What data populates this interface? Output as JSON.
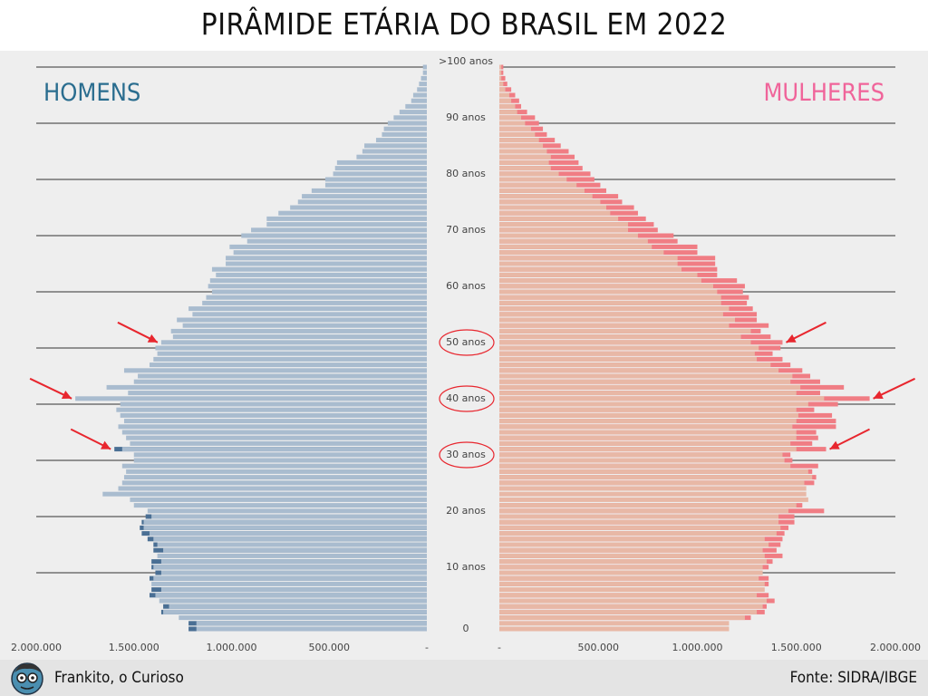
{
  "title": "PIRÂMIDE ETÁRIA DO BRASIL EM 2022",
  "footer": {
    "credit": "Frankito, o Curioso",
    "source": "Fonte: SIDRA/IBGE"
  },
  "colors": {
    "male_bar": "#a9bccf",
    "male_excess": "#4a6f94",
    "female_bar": "#e8b8a6",
    "female_excess": "#f07d84",
    "male_label": "#2a6d8f",
    "female_label": "#f0649a",
    "arrow": "#e8262e",
    "panel": "#eeeeee"
  },
  "chart_data": {
    "type": "bar",
    "orientation": "horizontal-population-pyramid",
    "title": "PIRÂMIDE ETÁRIA DO BRASIL EM 2022",
    "left_label": "HOMENS",
    "right_label": "MULHERES",
    "x_range": [
      0,
      2000000
    ],
    "male_ticks": [
      "2.000.000",
      "1.500.000",
      "1.000.000",
      "500.000",
      "-"
    ],
    "female_ticks": [
      "-",
      "500.000",
      "1.000.000",
      "1.500.000",
      "2.000.000"
    ],
    "age_labels": [
      {
        "age": 100,
        "label": ">100 anos"
      },
      {
        "age": 90,
        "label": "90 anos"
      },
      {
        "age": 80,
        "label": "80 anos"
      },
      {
        "age": 70,
        "label": "70 anos"
      },
      {
        "age": 60,
        "label": "60 anos"
      },
      {
        "age": 50,
        "label": "50 anos"
      },
      {
        "age": 40,
        "label": "40 anos"
      },
      {
        "age": 30,
        "label": "30 anos"
      },
      {
        "age": 20,
        "label": "20 anos"
      },
      {
        "age": 10,
        "label": "10 anos"
      },
      {
        "age": 0,
        "label": "0"
      }
    ],
    "highlighted_ages": [
      50,
      40,
      30
    ],
    "arrow_ages": [
      51,
      41,
      32
    ],
    "ages": [
      0,
      1,
      2,
      3,
      4,
      5,
      6,
      7,
      8,
      9,
      10,
      11,
      12,
      13,
      14,
      15,
      16,
      17,
      18,
      19,
      20,
      21,
      22,
      23,
      24,
      25,
      26,
      27,
      28,
      29,
      30,
      31,
      32,
      33,
      34,
      35,
      36,
      37,
      38,
      39,
      40,
      41,
      42,
      43,
      44,
      45,
      46,
      47,
      48,
      49,
      50,
      51,
      52,
      53,
      54,
      55,
      56,
      57,
      58,
      59,
      60,
      61,
      62,
      63,
      64,
      65,
      66,
      67,
      68,
      69,
      70,
      71,
      72,
      73,
      74,
      75,
      76,
      77,
      78,
      79,
      80,
      81,
      82,
      83,
      84,
      85,
      86,
      87,
      88,
      89,
      90,
      91,
      92,
      93,
      94,
      95,
      96,
      97,
      98,
      99,
      100
    ],
    "series": [
      {
        "name": "HOMENS",
        "values": [
          1180000,
          1180000,
          1270000,
          1350000,
          1320000,
          1370000,
          1390000,
          1360000,
          1410000,
          1400000,
          1360000,
          1400000,
          1360000,
          1380000,
          1350000,
          1380000,
          1400000,
          1420000,
          1450000,
          1450000,
          1410000,
          1430000,
          1500000,
          1520000,
          1660000,
          1580000,
          1560000,
          1550000,
          1540000,
          1560000,
          1500000,
          1500000,
          1560000,
          1520000,
          1540000,
          1560000,
          1580000,
          1550000,
          1570000,
          1590000,
          1570000,
          1800000,
          1530000,
          1640000,
          1500000,
          1480000,
          1550000,
          1420000,
          1400000,
          1380000,
          1390000,
          1360000,
          1300000,
          1310000,
          1250000,
          1280000,
          1200000,
          1220000,
          1150000,
          1130000,
          1100000,
          1120000,
          1110000,
          1080000,
          1100000,
          1030000,
          1030000,
          990000,
          1010000,
          920000,
          950000,
          900000,
          820000,
          820000,
          760000,
          700000,
          660000,
          640000,
          590000,
          520000,
          520000,
          480000,
          470000,
          460000,
          360000,
          330000,
          320000,
          260000,
          230000,
          220000,
          200000,
          170000,
          140000,
          110000,
          80000,
          70000,
          50000,
          40000,
          30000,
          20000,
          20000
        ],
        "excess": [
          1220000,
          1220000,
          1270000,
          1360000,
          1350000,
          1370000,
          1420000,
          1410000,
          1410000,
          1420000,
          1390000,
          1410000,
          1410000,
          1380000,
          1400000,
          1400000,
          1430000,
          1460000,
          1470000,
          1460000,
          1440000,
          1430000,
          1500000,
          1520000,
          1660000,
          1580000,
          1560000,
          1550000,
          1540000,
          1560000,
          1500000,
          1500000,
          1600000,
          1520000,
          1540000,
          1560000,
          1580000,
          1550000,
          1570000,
          1590000,
          1570000,
          1800000,
          1530000,
          1640000,
          1500000,
          1480000,
          1550000,
          1420000,
          1400000,
          1380000,
          1390000,
          1360000,
          1300000,
          1310000,
          1250000,
          1280000,
          1200000,
          1220000,
          1150000,
          1130000,
          1100000,
          1120000,
          1110000,
          1080000,
          1100000,
          1030000,
          1030000,
          990000,
          1010000,
          920000,
          950000,
          900000,
          820000,
          820000,
          760000,
          700000,
          660000,
          640000,
          590000,
          520000,
          520000,
          480000,
          470000,
          460000,
          360000,
          330000,
          320000,
          260000,
          230000,
          220000,
          200000,
          170000,
          140000,
          110000,
          80000,
          70000,
          50000,
          40000,
          30000,
          20000,
          20000
        ]
      },
      {
        "name": "MULHERES",
        "values": [
          1160000,
          1160000,
          1240000,
          1300000,
          1330000,
          1350000,
          1300000,
          1340000,
          1340000,
          1310000,
          1330000,
          1330000,
          1350000,
          1340000,
          1330000,
          1360000,
          1340000,
          1400000,
          1420000,
          1410000,
          1410000,
          1460000,
          1500000,
          1560000,
          1550000,
          1550000,
          1540000,
          1580000,
          1560000,
          1470000,
          1440000,
          1430000,
          1500000,
          1470000,
          1500000,
          1500000,
          1480000,
          1500000,
          1510000,
          1500000,
          1560000,
          1640000,
          1500000,
          1520000,
          1470000,
          1480000,
          1410000,
          1370000,
          1300000,
          1290000,
          1310000,
          1270000,
          1220000,
          1270000,
          1160000,
          1190000,
          1130000,
          1160000,
          1120000,
          1120000,
          1100000,
          1080000,
          1020000,
          1000000,
          920000,
          900000,
          900000,
          830000,
          770000,
          750000,
          700000,
          650000,
          650000,
          600000,
          560000,
          540000,
          510000,
          470000,
          430000,
          390000,
          340000,
          300000,
          260000,
          250000,
          260000,
          240000,
          220000,
          200000,
          180000,
          160000,
          130000,
          110000,
          90000,
          80000,
          60000,
          50000,
          30000,
          20000,
          10000,
          10000,
          10000
        ],
        "excess": [
          1160000,
          1160000,
          1270000,
          1340000,
          1350000,
          1390000,
          1360000,
          1340000,
          1360000,
          1360000,
          1330000,
          1360000,
          1380000,
          1430000,
          1400000,
          1420000,
          1430000,
          1440000,
          1460000,
          1490000,
          1490000,
          1640000,
          1530000,
          1560000,
          1550000,
          1550000,
          1590000,
          1600000,
          1580000,
          1610000,
          1480000,
          1470000,
          1650000,
          1580000,
          1610000,
          1600000,
          1700000,
          1700000,
          1680000,
          1590000,
          1710000,
          1870000,
          1620000,
          1740000,
          1620000,
          1570000,
          1530000,
          1470000,
          1430000,
          1380000,
          1420000,
          1430000,
          1370000,
          1320000,
          1360000,
          1300000,
          1300000,
          1280000,
          1250000,
          1260000,
          1230000,
          1240000,
          1200000,
          1100000,
          1100000,
          1090000,
          1090000,
          1000000,
          1000000,
          900000,
          880000,
          800000,
          780000,
          740000,
          700000,
          680000,
          620000,
          600000,
          540000,
          510000,
          480000,
          460000,
          420000,
          400000,
          380000,
          350000,
          310000,
          280000,
          240000,
          220000,
          200000,
          180000,
          140000,
          110000,
          100000,
          80000,
          60000,
          40000,
          30000,
          20000,
          20000
        ]
      }
    ]
  }
}
